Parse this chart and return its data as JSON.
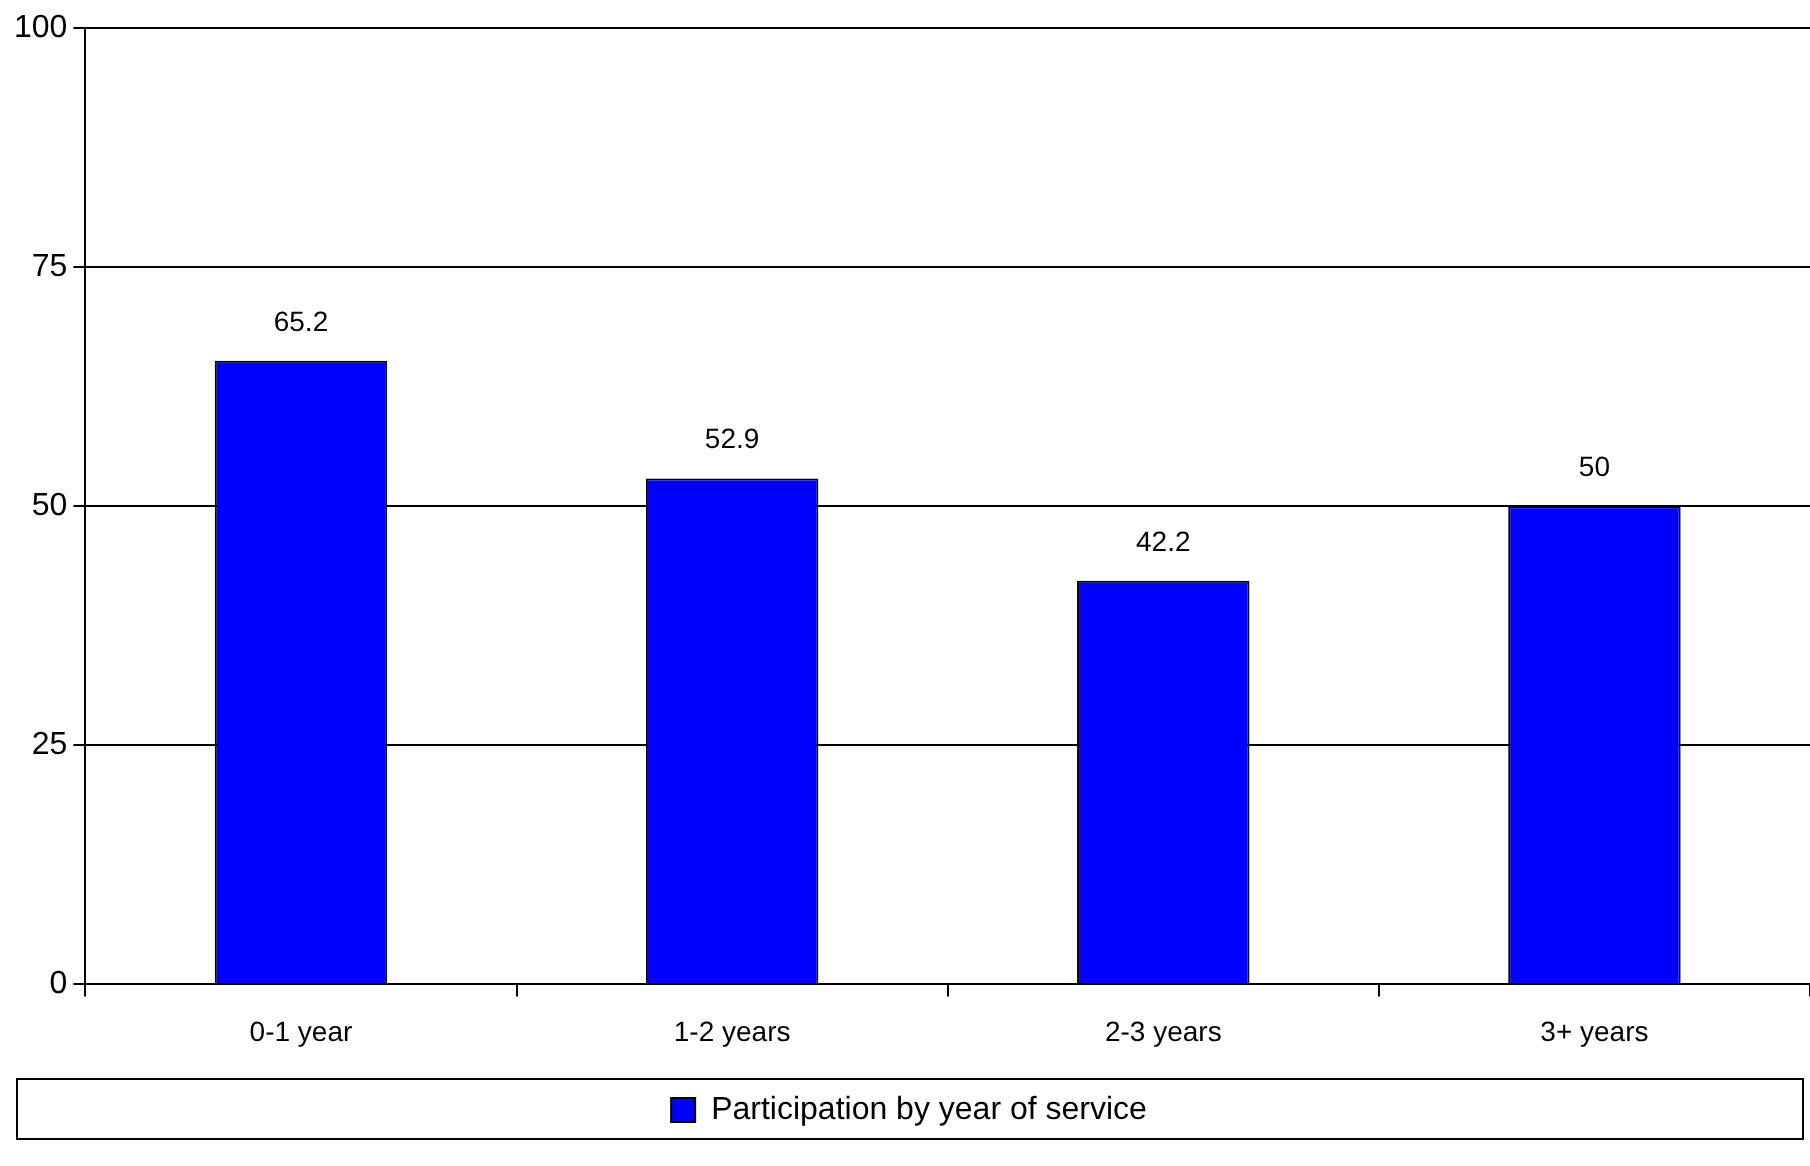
{
  "chart_data": {
    "type": "bar",
    "categories": [
      "0-1 year",
      "1-2 years",
      "2-3 years",
      "3+ years"
    ],
    "series": [
      {
        "name": "Participation by year of service",
        "color": "#0000ff",
        "values": [
          65.2,
          52.9,
          42.2,
          50
        ]
      }
    ],
    "ylim": [
      0,
      100
    ],
    "yticks": [
      0,
      25,
      50,
      75,
      100
    ],
    "grid": "y",
    "legend": "bottom",
    "data_labels": true
  }
}
